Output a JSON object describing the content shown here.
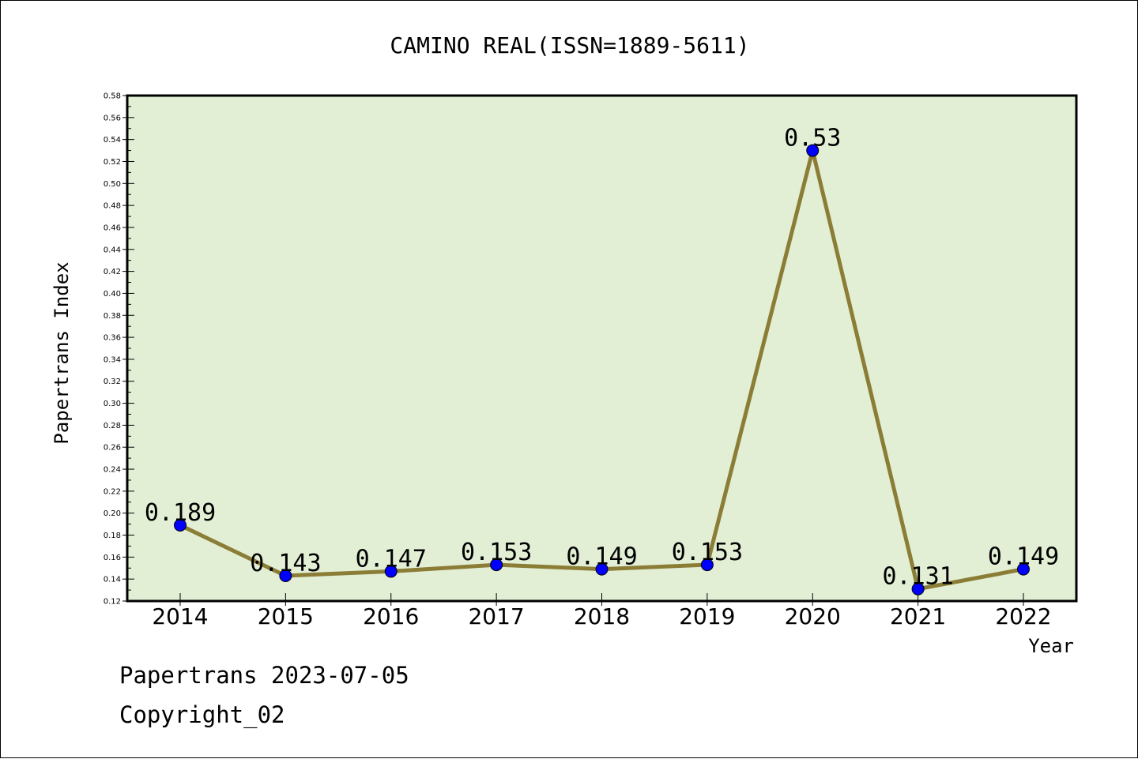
{
  "chart_data": {
    "type": "line",
    "title": "CAMINO REAL(ISSN=1889-5611)",
    "xlabel": "Year",
    "ylabel": "Papertrans Index",
    "categories": [
      "2014",
      "2015",
      "2016",
      "2017",
      "2018",
      "2019",
      "2020",
      "2021",
      "2022"
    ],
    "series": [
      {
        "values": [
          0.189,
          0.143,
          0.147,
          0.153,
          0.149,
          0.153,
          0.53,
          0.131,
          0.149
        ],
        "labels": [
          "0.189",
          "0.143",
          "0.147",
          "0.153",
          "0.149",
          "0.153",
          "0.53",
          "0.131",
          "0.149"
        ]
      }
    ],
    "ylim": [
      0.12,
      0.58
    ],
    "yticks": [
      "0.12",
      "0.14",
      "0.16",
      "0.18",
      "0.20",
      "0.22",
      "0.24",
      "0.26",
      "0.28",
      "0.30",
      "0.32",
      "0.34",
      "0.36",
      "0.38",
      "0.40",
      "0.42",
      "0.44",
      "0.46",
      "0.48",
      "0.50",
      "0.52",
      "0.54",
      "0.56",
      "0.58"
    ],
    "grid": false,
    "colors": {
      "plot_background": "#e2efd5",
      "line": "#8b7d36",
      "marker": "#0000ff",
      "axis": "#000000"
    }
  },
  "footer": {
    "source": "Papertrans 2023-07-05",
    "copyright": "Copyright_02"
  }
}
